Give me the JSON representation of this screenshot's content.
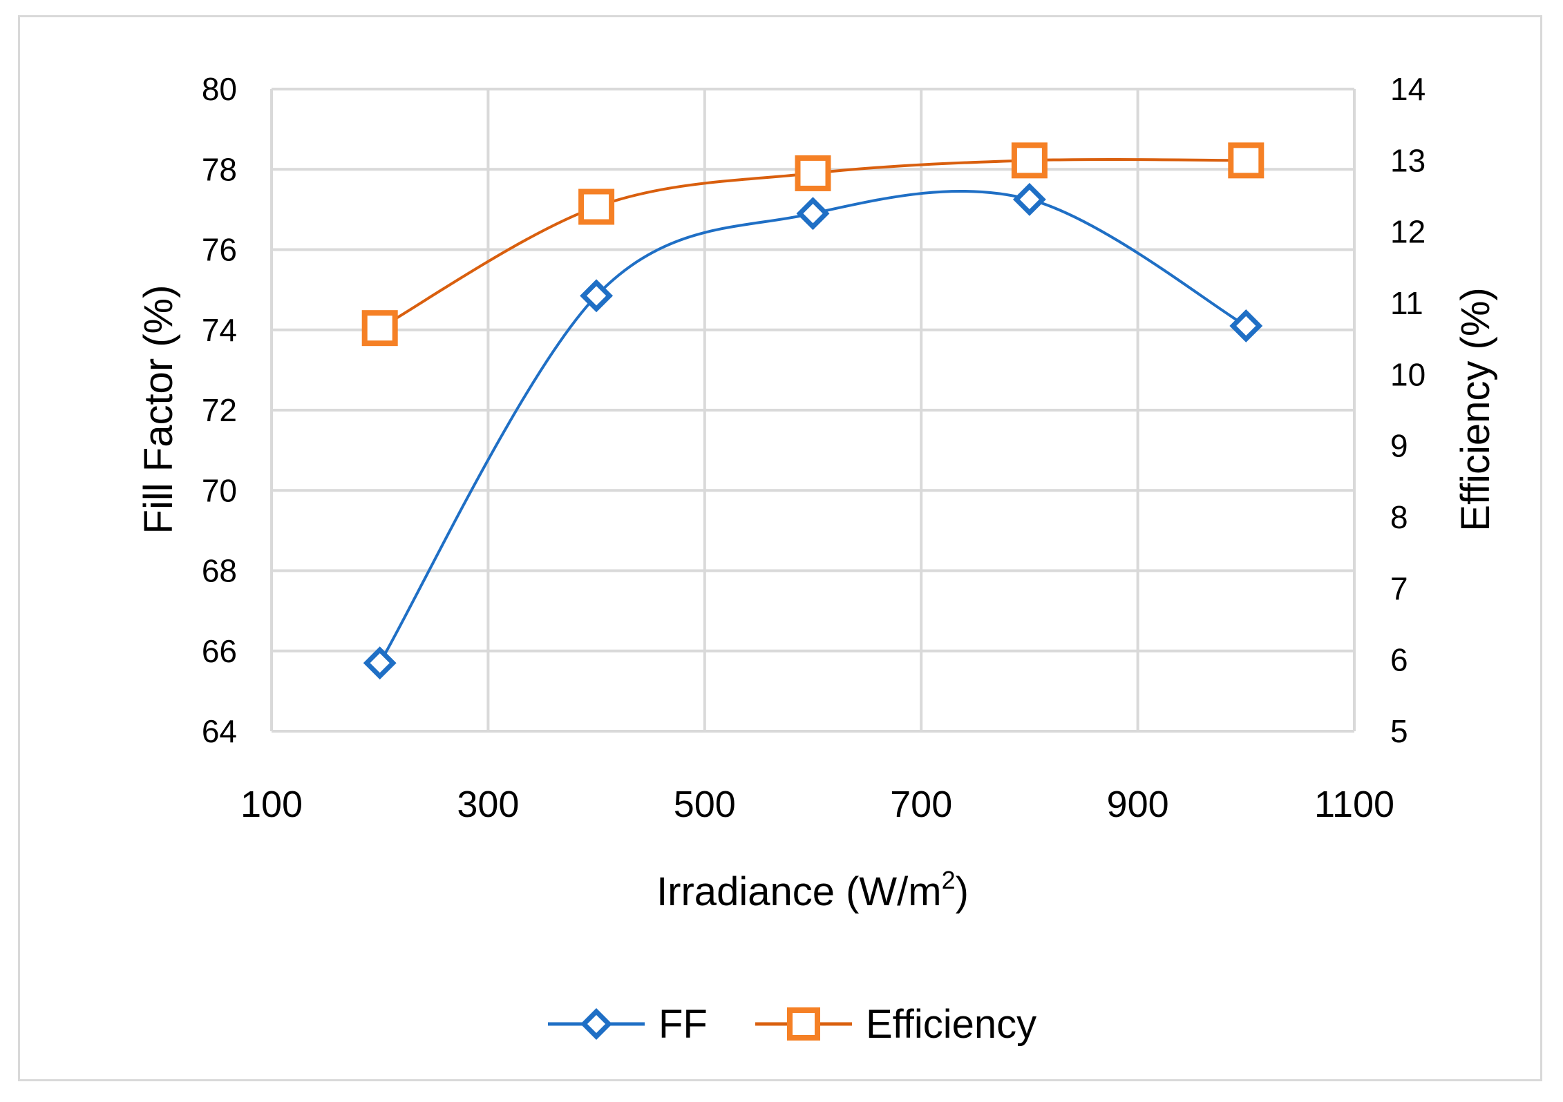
{
  "chart_data": {
    "type": "line",
    "title": "",
    "xlabel": "Irradiance (W/m",
    "xlabel_superscript": "2",
    "xlabel_suffix": ")",
    "ylabel_left": "Fill Factor (%)",
    "ylabel_right": "Efficiency (%)",
    "xlim": [
      100,
      1100
    ],
    "x_ticks": [
      100,
      300,
      500,
      700,
      900,
      1100
    ],
    "ylim_left": [
      64,
      80
    ],
    "y_ticks_left": [
      64,
      66,
      68,
      70,
      72,
      74,
      76,
      78,
      80
    ],
    "ylim_right": [
      5,
      14
    ],
    "y_ticks_right": [
      5,
      6,
      7,
      8,
      9,
      10,
      11,
      12,
      13,
      14
    ],
    "grid": true,
    "legend_position": "bottom-center",
    "x": [
      200,
      400,
      600,
      800,
      1000
    ],
    "series": [
      {
        "name": "FF",
        "axis": "left",
        "marker": "diamond",
        "color": "#1f6fc5",
        "values": [
          65.7,
          74.85,
          76.9,
          77.25,
          74.1
        ]
      },
      {
        "name": "Efficiency",
        "axis": "right",
        "marker": "square",
        "color": "#d95f0e",
        "marker_color": "#f58025",
        "values": [
          10.65,
          12.35,
          12.82,
          13.0,
          13.0
        ]
      }
    ],
    "gridline_color": "#d9d9d9"
  }
}
